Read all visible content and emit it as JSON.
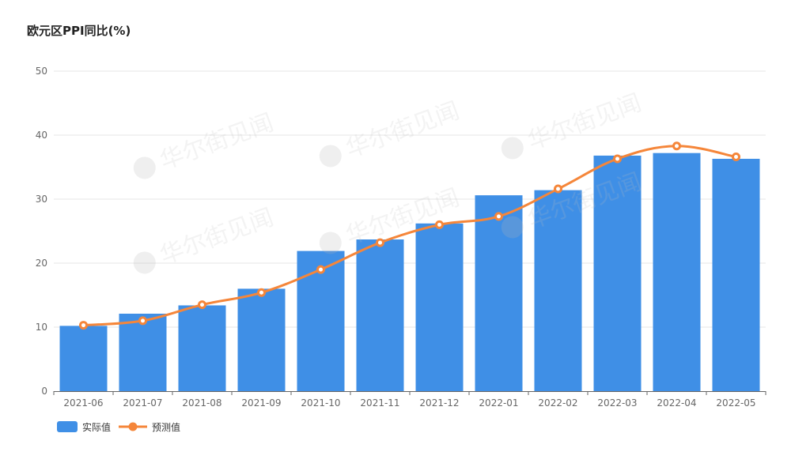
{
  "page": {
    "title": "欧元区PPI同比(%)"
  },
  "chart_data": {
    "type": "bar",
    "title": "欧元区PPI同比(%)",
    "categories": [
      "2021-06",
      "2021-07",
      "2021-08",
      "2021-09",
      "2021-10",
      "2021-11",
      "2021-12",
      "2022-01",
      "2022-02",
      "2022-03",
      "2022-04",
      "2022-05"
    ],
    "ylim": [
      0,
      50
    ],
    "yticks": [
      0,
      10,
      20,
      30,
      40,
      50
    ],
    "grid": true,
    "legend_position": "bottom-left",
    "series": [
      {
        "name": "实际值",
        "type": "bar",
        "color": "#3f8fe6",
        "values": [
          10.2,
          12.1,
          13.4,
          16.0,
          21.9,
          23.7,
          26.2,
          30.6,
          31.4,
          36.8,
          37.2,
          36.3
        ]
      },
      {
        "name": "预测值",
        "type": "line",
        "color": "#f5863a",
        "values": [
          10.3,
          11.0,
          13.5,
          15.4,
          19.0,
          23.2,
          26.0,
          27.3,
          31.6,
          36.3,
          38.3,
          36.6
        ]
      }
    ],
    "watermark": "华尔街见闻"
  }
}
